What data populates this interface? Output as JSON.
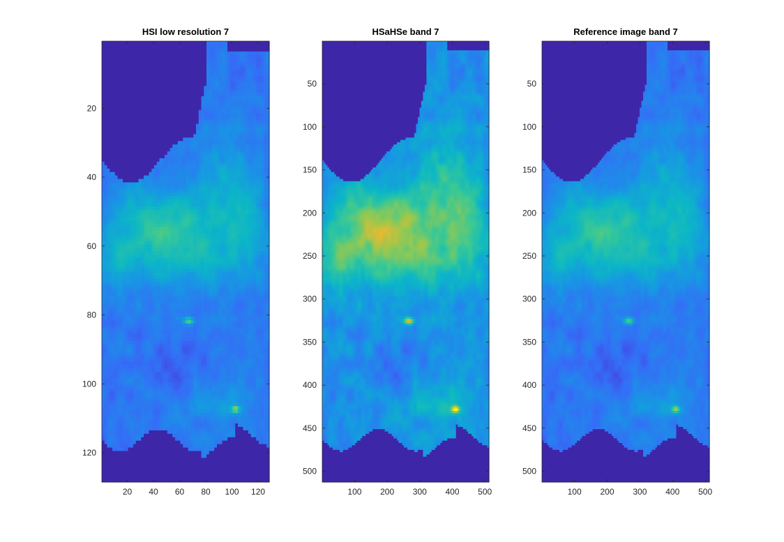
{
  "colormap": "parula",
  "chart_data": [
    {
      "type": "heatmap",
      "title": "HSI low resolution 7",
      "xlim": [
        0.5,
        128.5
      ],
      "ylim": [
        0.5,
        128.5
      ],
      "yreversed": true,
      "xticks": [
        20,
        40,
        60,
        80,
        100,
        120
      ],
      "yticks": [
        20,
        40,
        60,
        80,
        100,
        120
      ],
      "band": 7,
      "resolution": "low",
      "brightness": "medium"
    },
    {
      "type": "heatmap",
      "title": "HSaHSe band 7",
      "xlim": [
        0.5,
        512.5
      ],
      "ylim": [
        0.5,
        512.5
      ],
      "yreversed": true,
      "xticks": [
        100,
        200,
        300,
        400,
        500
      ],
      "yticks": [
        50,
        100,
        150,
        200,
        250,
        300,
        350,
        400,
        450,
        500
      ],
      "band": 7,
      "resolution": "high",
      "brightness": "high"
    },
    {
      "type": "heatmap",
      "title": "Reference image band 7",
      "xlim": [
        0.5,
        512.5
      ],
      "ylim": [
        0.5,
        512.5
      ],
      "yreversed": true,
      "xticks": [
        100,
        200,
        300,
        400,
        500
      ],
      "yticks": [
        50,
        100,
        150,
        200,
        250,
        300,
        350,
        400,
        450,
        500
      ],
      "band": 7,
      "resolution": "high",
      "brightness": "medium"
    }
  ]
}
